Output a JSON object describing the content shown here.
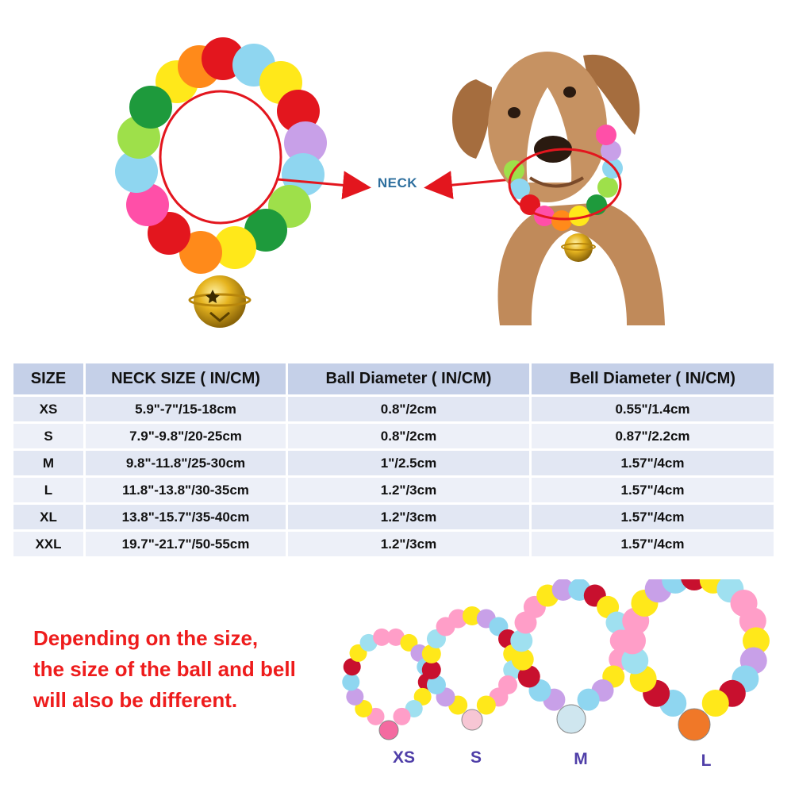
{
  "callout": {
    "neck_label": "NECK"
  },
  "table": {
    "headers": [
      "SIZE",
      "NECK SIZE ( IN/CM)",
      "Ball Diameter ( IN/CM)",
      "Bell Diameter ( IN/CM)"
    ],
    "rows": [
      [
        "XS",
        "5.9\"-7\"/15-18cm",
        "0.8\"/2cm",
        "0.55\"/1.4cm"
      ],
      [
        "S",
        "7.9\"-9.8\"/20-25cm",
        "0.8\"/2cm",
        "0.87\"/2.2cm"
      ],
      [
        "M",
        "9.8\"-11.8\"/25-30cm",
        "1\"/2.5cm",
        "1.57\"/4cm"
      ],
      [
        "L",
        "11.8\"-13.8\"/30-35cm",
        "1.2\"/3cm",
        "1.57\"/4cm"
      ],
      [
        "XL",
        "13.8\"-15.7\"/35-40cm",
        "1.2\"/3cm",
        "1.57\"/4cm"
      ],
      [
        "XXL",
        "19.7\"-21.7\"/50-55cm",
        "1.2\"/3cm",
        "1.57\"/4cm"
      ]
    ]
  },
  "note": {
    "lines": [
      "Depending on the size,",
      "the size of the ball and bell",
      "will also be different."
    ],
    "color": "#ee1c1c"
  },
  "size_samples": {
    "labels": [
      "XS",
      "S",
      "M",
      "L"
    ],
    "label_color": "#4f3ea8"
  },
  "colors": {
    "pompom_palette": [
      "#ffe81a",
      "#ff8a1a",
      "#e3161e",
      "#8fd6f0",
      "#1e9a3c",
      "#9ee04a",
      "#c8a0e8",
      "#ff4fa8"
    ],
    "bell": "#d9a514",
    "header_bg": "#c5d0e8",
    "arrow": "#e3161e",
    "neck_label": "#2e6f9e"
  }
}
